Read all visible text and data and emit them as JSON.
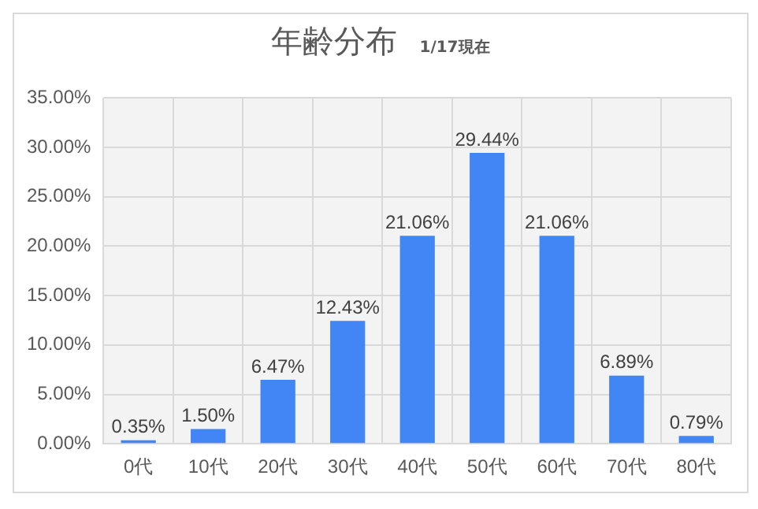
{
  "chart_data": {
    "type": "bar",
    "title": "年齢分布",
    "subtitle": "1/17現在",
    "categories": [
      "0代",
      "10代",
      "20代",
      "30代",
      "40代",
      "50代",
      "60代",
      "70代",
      "80代"
    ],
    "values": [
      0.35,
      1.5,
      6.47,
      12.43,
      21.06,
      29.44,
      21.06,
      6.89,
      0.79
    ],
    "value_labels": [
      "0.35%",
      "1.50%",
      "6.47%",
      "12.43%",
      "21.06%",
      "29.44%",
      "21.06%",
      "6.89%",
      "0.79%"
    ],
    "color": "#4285f4",
    "ylim": [
      0,
      35
    ],
    "yticks": [
      {
        "value": 0,
        "label": "0.00%"
      },
      {
        "value": 5,
        "label": "5.00%"
      },
      {
        "value": 10,
        "label": "10.00%"
      },
      {
        "value": 15,
        "label": "15.00%"
      },
      {
        "value": 20,
        "label": "20.00%"
      },
      {
        "value": 25,
        "label": "25.00%"
      },
      {
        "value": 30,
        "label": "30.00%"
      },
      {
        "value": 35,
        "label": "35.00%"
      }
    ],
    "grid": true,
    "legend": false
  }
}
